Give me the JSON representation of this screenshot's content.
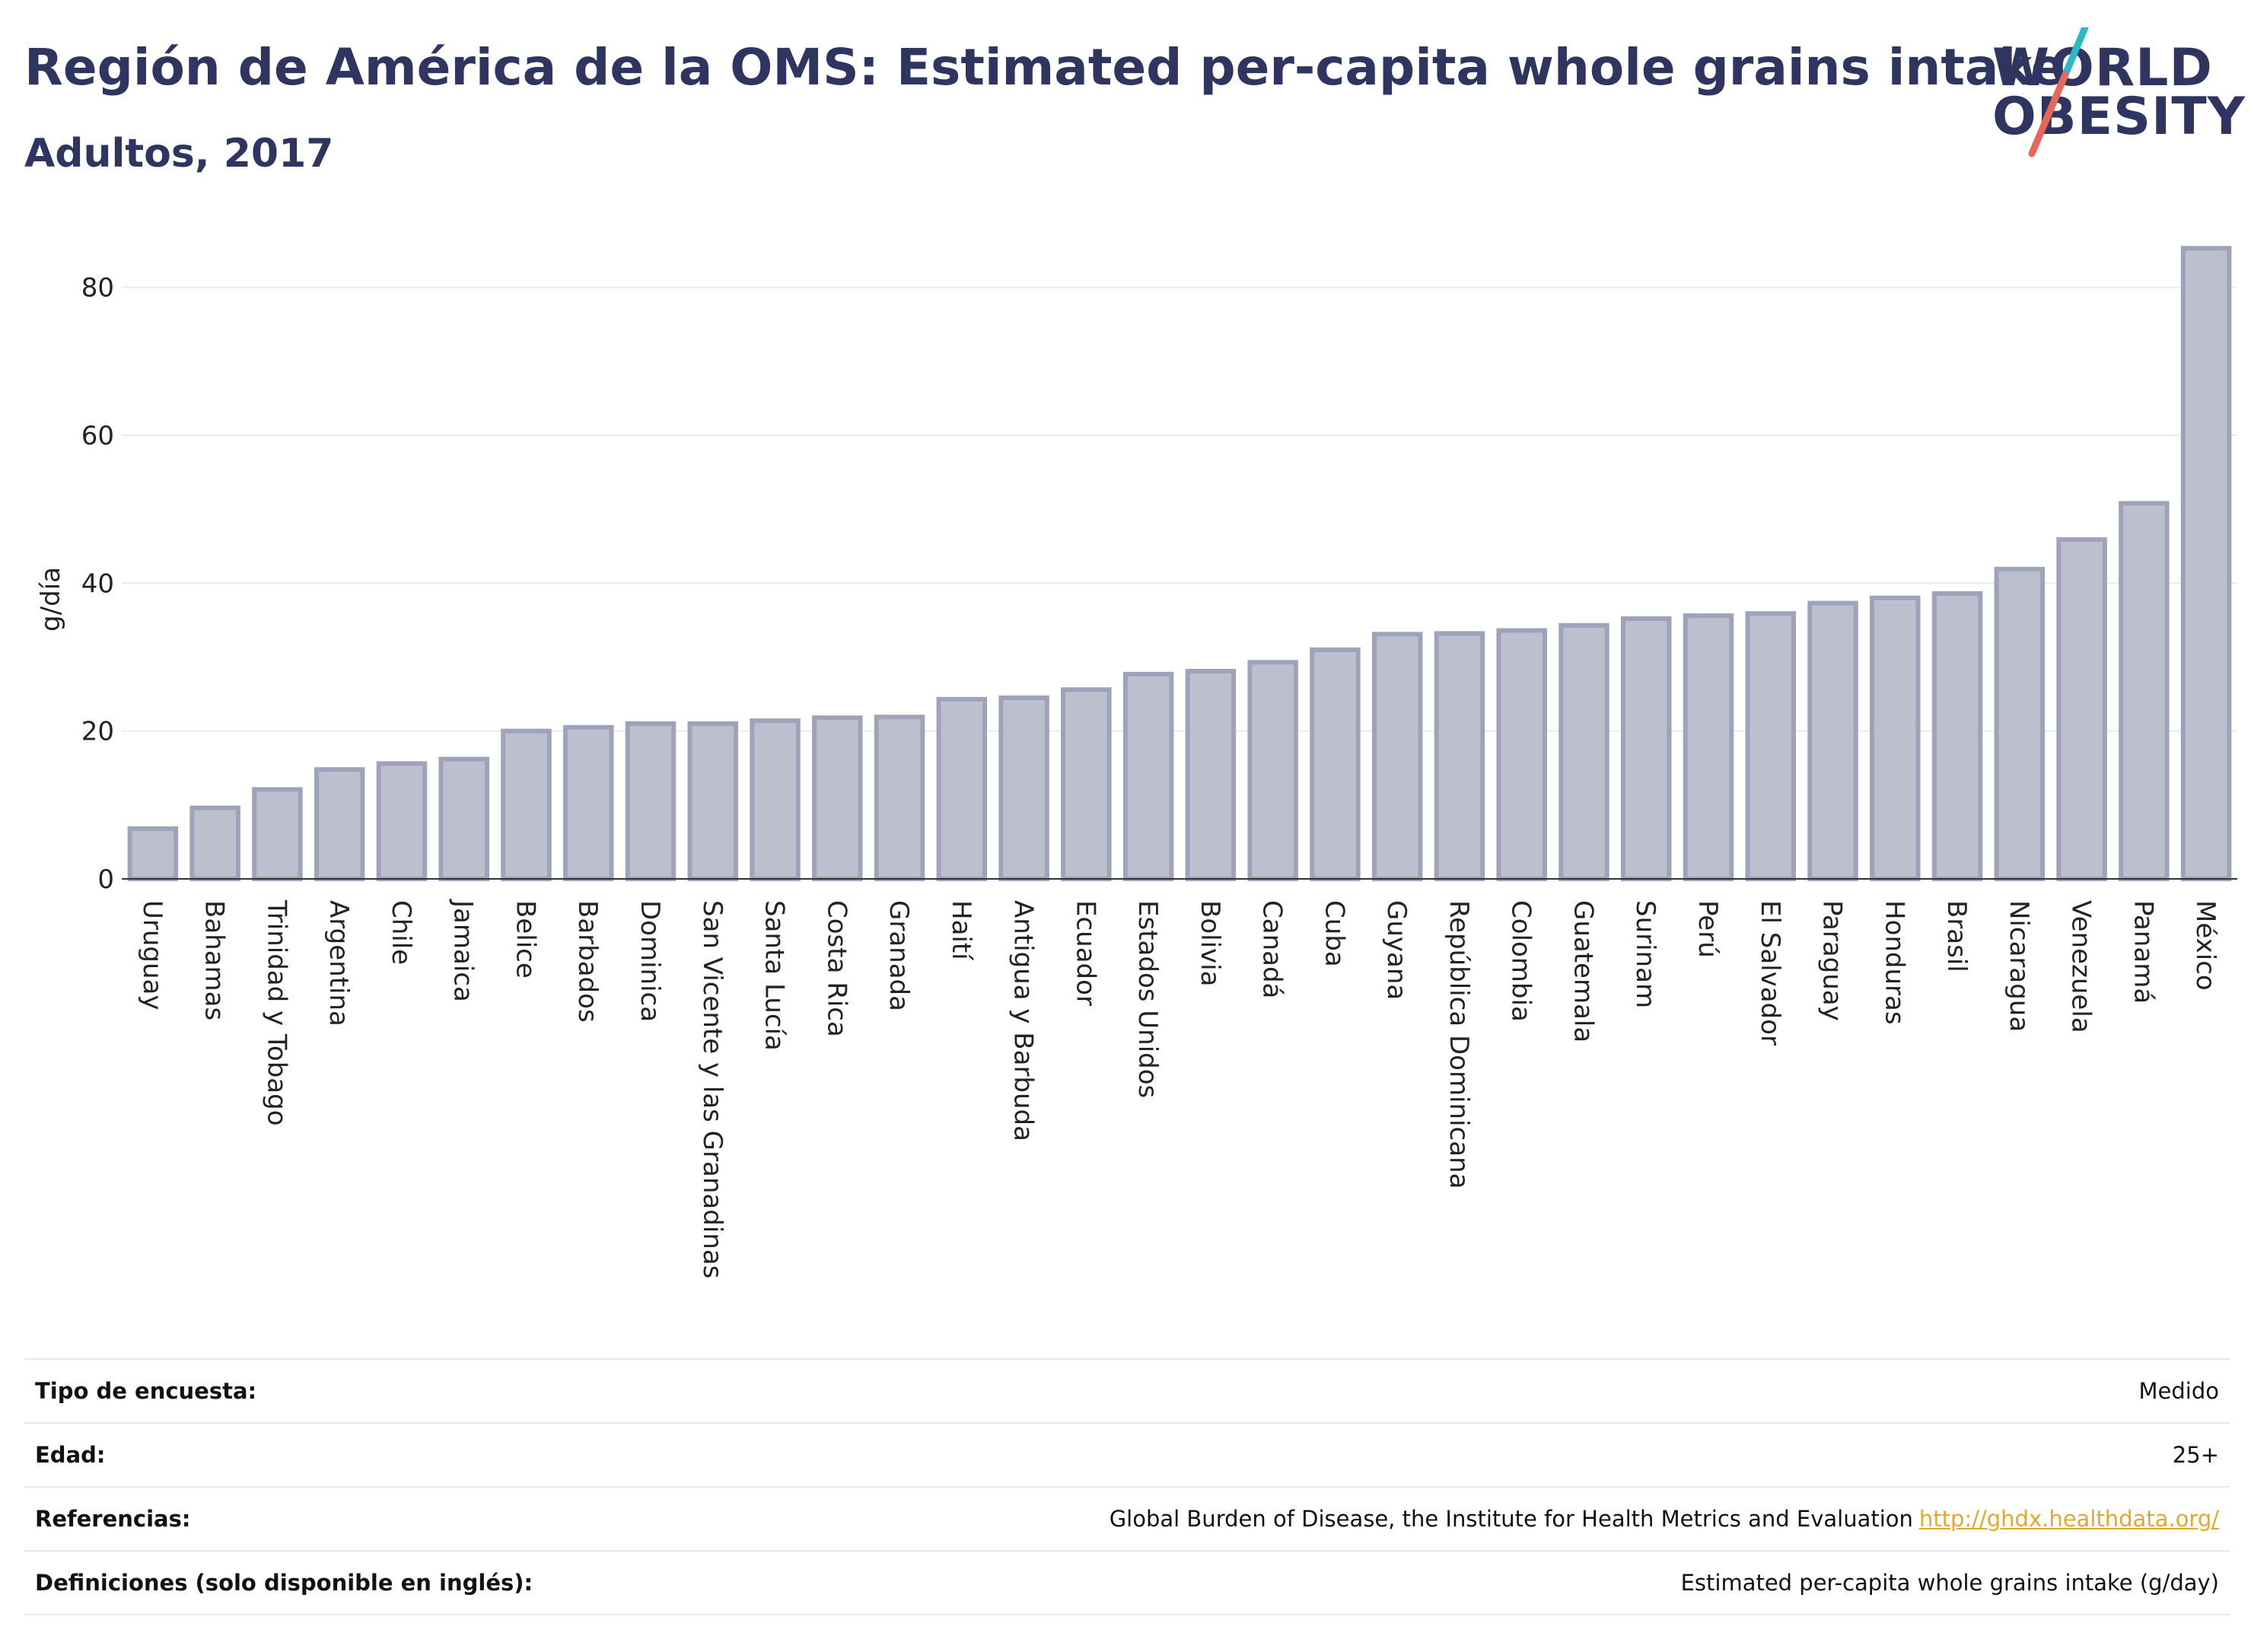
{
  "header": {
    "title": "Región de América de la OMS: Estimated per-capita whole grains intake",
    "subtitle": "Adultos, 2017"
  },
  "logo": {
    "line1": "WORLD",
    "line2": "OBESITY"
  },
  "colors": {
    "title": "#2d3560",
    "bar_fill": "#bcc0ce",
    "bar_stroke": "#9ea3b9",
    "link": "#e3a92b",
    "logo_slash_teal": "#2cb8c4",
    "logo_slash_red": "#e8675a"
  },
  "chart_data": {
    "type": "bar",
    "ylabel": "g/día",
    "ylim": [
      0,
      88
    ],
    "yticks": [
      0,
      20,
      40,
      60,
      80
    ],
    "grid": true,
    "categories": [
      "Uruguay",
      "Bahamas",
      "Trinidad y Tobago",
      "Argentina",
      "Chile",
      "Jamaica",
      "Belice",
      "Barbados",
      "Dominica",
      "San Vicente y las Granadinas",
      "Santa Lucía",
      "Costa Rica",
      "Granada",
      "Haití",
      "Antigua y Barbuda",
      "Ecuador",
      "Estados Unidos",
      "Bolivia",
      "Canadá",
      "Cuba",
      "Guyana",
      "República Dominicana",
      "Colombia",
      "Guatemala",
      "Surinam",
      "Perú",
      "El Salvador",
      "Paraguay",
      "Honduras",
      "Brasil",
      "Nicaragua",
      "Venezuela",
      "Panamá",
      "México"
    ],
    "values": [
      6.8,
      9.6,
      12.1,
      14.8,
      15.6,
      16.2,
      20.0,
      20.5,
      21.0,
      21.0,
      21.4,
      21.8,
      21.9,
      24.3,
      24.5,
      25.6,
      27.7,
      28.1,
      29.3,
      31.0,
      33.1,
      33.2,
      33.6,
      34.3,
      35.2,
      35.6,
      35.9,
      37.3,
      38.0,
      38.6,
      41.9,
      45.9,
      50.8,
      85.3
    ]
  },
  "info": {
    "rows": [
      {
        "label": "Tipo de encuesta:",
        "value": "Medido",
        "link": ""
      },
      {
        "label": "Edad:",
        "value": "25+",
        "link": ""
      },
      {
        "label": "Referencias:",
        "value": "Global Burden of Disease, the Institute for Health Metrics and Evaluation",
        "link": "http://ghdx.healthdata.org/"
      },
      {
        "label": "Definiciones (solo disponible en inglés):",
        "value": "Estimated per-capita whole grains intake (g/day)",
        "link": ""
      }
    ]
  }
}
